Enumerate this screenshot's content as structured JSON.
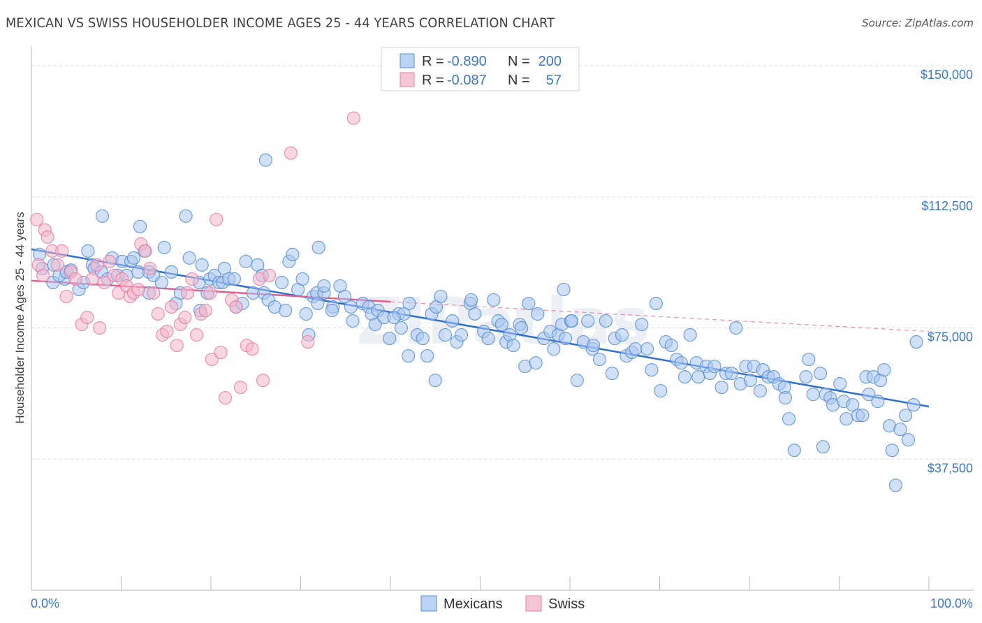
{
  "header": {
    "title": "MEXICAN VS SWISS HOUSEHOLDER INCOME AGES 25 - 44 YEARS CORRELATION CHART",
    "source": "Source: ZipAtlas.com"
  },
  "watermark": "ZIPatlas",
  "chart_data": {
    "type": "scatter",
    "title": "MEXICAN VS SWISS HOUSEHOLDER INCOME AGES 25 - 44 YEARS CORRELATION CHART",
    "xlabel": "",
    "ylabel": "Householder Income Ages 25 - 44 years",
    "xlim": [
      0,
      100
    ],
    "ylim": [
      0,
      153000
    ],
    "x_ticks": [
      "0.0%",
      "100.0%"
    ],
    "y_ticks": [
      {
        "value": 150000,
        "label": "$150,000"
      },
      {
        "value": 112500,
        "label": "$112,500"
      },
      {
        "value": 75000,
        "label": "$75,000"
      },
      {
        "value": 37500,
        "label": "$37,500"
      }
    ],
    "grid": true,
    "legend_position": "top-center",
    "series": [
      {
        "name": "Mexicans",
        "color": "#5b8fd6",
        "fill": "#a9c7f0",
        "stats": {
          "r_label": "R =",
          "r": "-0.890",
          "n_label": "N =",
          "n": "200"
        },
        "trend": {
          "x": [
            0,
            100
          ],
          "y": [
            97500,
            52500
          ],
          "style": "solid",
          "color": "#2e6fd1"
        },
        "points": [
          [
            0.9,
            96000
          ],
          [
            1.2,
            92000
          ],
          [
            2.5,
            93000
          ],
          [
            2.4,
            88000
          ],
          [
            3.7,
            89000
          ],
          [
            3.1,
            90000
          ],
          [
            3.9,
            91000
          ],
          [
            4.4,
            91500
          ],
          [
            5.3,
            86000
          ],
          [
            5.8,
            88000
          ],
          [
            6.3,
            97000
          ],
          [
            6.8,
            93000
          ],
          [
            7.0,
            92000
          ],
          [
            7.8,
            91000
          ],
          [
            7.9,
            107000
          ],
          [
            8.5,
            89000
          ],
          [
            9.0,
            95000
          ],
          [
            9.6,
            90000
          ],
          [
            10.1,
            94000
          ],
          [
            10.6,
            90000
          ],
          [
            11.1,
            94000
          ],
          [
            11.4,
            95000
          ],
          [
            11.9,
            91000
          ],
          [
            12.1,
            104000
          ],
          [
            12.6,
            97000
          ],
          [
            13.1,
            91000
          ],
          [
            13.1,
            85000
          ],
          [
            13.6,
            90000
          ],
          [
            14.5,
            88000
          ],
          [
            14.8,
            98000
          ],
          [
            15.6,
            91000
          ],
          [
            16.1,
            82000
          ],
          [
            16.6,
            85000
          ],
          [
            17.2,
            107000
          ],
          [
            17.6,
            95000
          ],
          [
            18.7,
            88000
          ],
          [
            19.0,
            93000
          ],
          [
            19.6,
            85000
          ],
          [
            19.9,
            89000
          ],
          [
            20.4,
            90000
          ],
          [
            20.9,
            88000
          ],
          [
            21.5,
            92000
          ],
          [
            21.3,
            88000
          ],
          [
            22.0,
            89000
          ],
          [
            22.6,
            89000
          ],
          [
            22.8,
            81000
          ],
          [
            23.5,
            82000
          ],
          [
            23.9,
            94000
          ],
          [
            24.7,
            85000
          ],
          [
            25.2,
            93000
          ],
          [
            25.7,
            90000
          ],
          [
            25.9,
            85000
          ],
          [
            26.4,
            83000
          ],
          [
            26.1,
            123000
          ],
          [
            27.1,
            81000
          ],
          [
            27.9,
            88000
          ],
          [
            28.3,
            80000
          ],
          [
            28.7,
            94000
          ],
          [
            29.1,
            96000
          ],
          [
            29.7,
            86000
          ],
          [
            30.6,
            79000
          ],
          [
            30.9,
            73000
          ],
          [
            31.4,
            84000
          ],
          [
            31.8,
            85000
          ],
          [
            32.6,
            85000
          ],
          [
            31.9,
            82000
          ],
          [
            32.0,
            98000
          ],
          [
            32.6,
            87000
          ],
          [
            33.6,
            81000
          ],
          [
            34.4,
            87000
          ],
          [
            33.5,
            80000
          ],
          [
            34.9,
            84000
          ],
          [
            35.6,
            81000
          ],
          [
            35.8,
            77000
          ],
          [
            36.9,
            82000
          ],
          [
            37.6,
            81000
          ],
          [
            37.9,
            79000
          ],
          [
            38.3,
            76000
          ],
          [
            38.6,
            80000
          ],
          [
            39.3,
            78000
          ],
          [
            39.9,
            72000
          ],
          [
            40.9,
            79000
          ],
          [
            41.5,
            79000
          ],
          [
            41.2,
            75000
          ],
          [
            42.1,
            82000
          ],
          [
            42.0,
            67000
          ],
          [
            43.0,
            73000
          ],
          [
            43.6,
            72000
          ],
          [
            44.1,
            67000
          ],
          [
            44.6,
            79000
          ],
          [
            45.1,
            81000
          ],
          [
            45.6,
            84000
          ],
          [
            46.1,
            73000
          ],
          [
            46.9,
            77000
          ],
          [
            47.4,
            71000
          ],
          [
            47.9,
            73000
          ],
          [
            48.9,
            82000
          ],
          [
            49.4,
            79000
          ],
          [
            49.0,
            83000
          ],
          [
            50.4,
            74000
          ],
          [
            50.9,
            72000
          ],
          [
            51.5,
            83000
          ],
          [
            52.0,
            77000
          ],
          [
            52.4,
            76000
          ],
          [
            52.9,
            71000
          ],
          [
            53.3,
            73000
          ],
          [
            53.7,
            70000
          ],
          [
            54.4,
            76000
          ],
          [
            54.6,
            75000
          ],
          [
            55.0,
            64000
          ],
          [
            55.4,
            82000
          ],
          [
            56.2,
            65000
          ],
          [
            56.4,
            79000
          ],
          [
            57.1,
            72000
          ],
          [
            57.8,
            74000
          ],
          [
            58.2,
            69000
          ],
          [
            58.7,
            73000
          ],
          [
            59.1,
            76000
          ],
          [
            59.5,
            72000
          ],
          [
            59.3,
            86000
          ],
          [
            60.1,
            77000
          ],
          [
            60.8,
            60000
          ],
          [
            61.5,
            71000
          ],
          [
            62.0,
            77000
          ],
          [
            62.5,
            69000
          ],
          [
            62.6,
            70000
          ],
          [
            63.3,
            66000
          ],
          [
            64.0,
            77000
          ],
          [
            64.7,
            62000
          ],
          [
            65.0,
            72000
          ],
          [
            65.8,
            73000
          ],
          [
            66.3,
            67000
          ],
          [
            66.9,
            68000
          ],
          [
            67.3,
            69000
          ],
          [
            68.0,
            76000
          ],
          [
            68.6,
            69000
          ],
          [
            69.1,
            63000
          ],
          [
            69.6,
            82000
          ],
          [
            70.1,
            57000
          ],
          [
            70.7,
            71000
          ],
          [
            71.3,
            70000
          ],
          [
            71.9,
            66000
          ],
          [
            72.4,
            65000
          ],
          [
            72.8,
            61000
          ],
          [
            73.4,
            73000
          ],
          [
            74.1,
            65000
          ],
          [
            74.3,
            61000
          ],
          [
            75.2,
            64000
          ],
          [
            75.6,
            62000
          ],
          [
            76.1,
            64000
          ],
          [
            76.9,
            58000
          ],
          [
            77.4,
            62000
          ],
          [
            78.0,
            62000
          ],
          [
            78.5,
            75000
          ],
          [
            79.0,
            59000
          ],
          [
            79.6,
            64000
          ],
          [
            80.1,
            60000
          ],
          [
            80.5,
            64000
          ],
          [
            81.2,
            57000
          ],
          [
            81.5,
            63000
          ],
          [
            82.1,
            61000
          ],
          [
            82.7,
            61000
          ],
          [
            83.3,
            59000
          ],
          [
            83.9,
            58000
          ],
          [
            84.0,
            55000
          ],
          [
            84.4,
            49000
          ],
          [
            85.0,
            40000
          ],
          [
            86.3,
            61000
          ],
          [
            86.6,
            66000
          ],
          [
            87.1,
            56000
          ],
          [
            87.9,
            62000
          ],
          [
            88.5,
            56000
          ],
          [
            88.2,
            41000
          ],
          [
            89.0,
            55000
          ],
          [
            89.3,
            53000
          ],
          [
            90.1,
            59000
          ],
          [
            90.5,
            54000
          ],
          [
            90.8,
            49000
          ],
          [
            91.5,
            53000
          ],
          [
            92.1,
            50000
          ],
          [
            92.6,
            50000
          ],
          [
            93.0,
            61000
          ],
          [
            93.3,
            56000
          ],
          [
            93.8,
            61000
          ],
          [
            94.3,
            54000
          ],
          [
            94.6,
            60000
          ],
          [
            95.0,
            63000
          ],
          [
            95.6,
            47000
          ],
          [
            95.9,
            40000
          ],
          [
            96.3,
            30000
          ],
          [
            96.8,
            46000
          ],
          [
            97.4,
            50000
          ],
          [
            97.7,
            43000
          ],
          [
            98.3,
            53000
          ],
          [
            98.6,
            71000
          ],
          [
            60.2,
            77000
          ],
          [
            45.0,
            60000
          ],
          [
            30.2,
            89000
          ],
          [
            18.8,
            80000
          ],
          [
            40.4,
            78000
          ]
        ]
      },
      {
        "name": "Swiss",
        "color": "#e87fa3",
        "fill": "#f4b6ca",
        "stats": {
          "r_label": "R =",
          "r": "-0.087",
          "n_label": "N =",
          "n": "57"
        },
        "trend": {
          "x": [
            0,
            40
          ],
          "y": [
            88500,
            82500
          ],
          "style": "solid",
          "color": "#e0608e",
          "extended": {
            "x": [
              40,
              100
            ],
            "y": [
              82500,
              74000
            ],
            "style": "dashed"
          }
        },
        "points": [
          [
            0.6,
            106000
          ],
          [
            0.8,
            93000
          ],
          [
            1.3,
            90000
          ],
          [
            1.5,
            103000
          ],
          [
            1.8,
            101000
          ],
          [
            2.3,
            97000
          ],
          [
            2.9,
            93000
          ],
          [
            3.4,
            97000
          ],
          [
            3.9,
            84000
          ],
          [
            4.4,
            91000
          ],
          [
            4.9,
            89000
          ],
          [
            5.6,
            76000
          ],
          [
            6.2,
            78000
          ],
          [
            6.8,
            89000
          ],
          [
            7.3,
            93000
          ],
          [
            7.6,
            75000
          ],
          [
            8.1,
            88000
          ],
          [
            8.7,
            94000
          ],
          [
            9.2,
            90000
          ],
          [
            9.7,
            85000
          ],
          [
            10.1,
            89000
          ],
          [
            10.6,
            87000
          ],
          [
            11.0,
            84000
          ],
          [
            11.4,
            85000
          ],
          [
            11.9,
            86000
          ],
          [
            12.2,
            99000
          ],
          [
            12.7,
            97000
          ],
          [
            13.2,
            92000
          ],
          [
            13.6,
            85000
          ],
          [
            14.1,
            79000
          ],
          [
            14.6,
            73000
          ],
          [
            15.1,
            74000
          ],
          [
            15.6,
            81000
          ],
          [
            16.2,
            70000
          ],
          [
            16.6,
            76000
          ],
          [
            17.1,
            78000
          ],
          [
            17.4,
            85000
          ],
          [
            17.9,
            89000
          ],
          [
            18.4,
            73000
          ],
          [
            18.9,
            79000
          ],
          [
            19.4,
            80000
          ],
          [
            19.9,
            85000
          ],
          [
            20.1,
            66000
          ],
          [
            20.6,
            106000
          ],
          [
            21.1,
            68000
          ],
          [
            21.6,
            55000
          ],
          [
            22.3,
            83000
          ],
          [
            22.8,
            81000
          ],
          [
            23.3,
            58000
          ],
          [
            24.0,
            70000
          ],
          [
            24.6,
            69000
          ],
          [
            25.4,
            89000
          ],
          [
            25.8,
            60000
          ],
          [
            26.5,
            90000
          ],
          [
            28.9,
            125000
          ],
          [
            30.8,
            71000
          ],
          [
            35.9,
            135000
          ]
        ]
      }
    ]
  }
}
